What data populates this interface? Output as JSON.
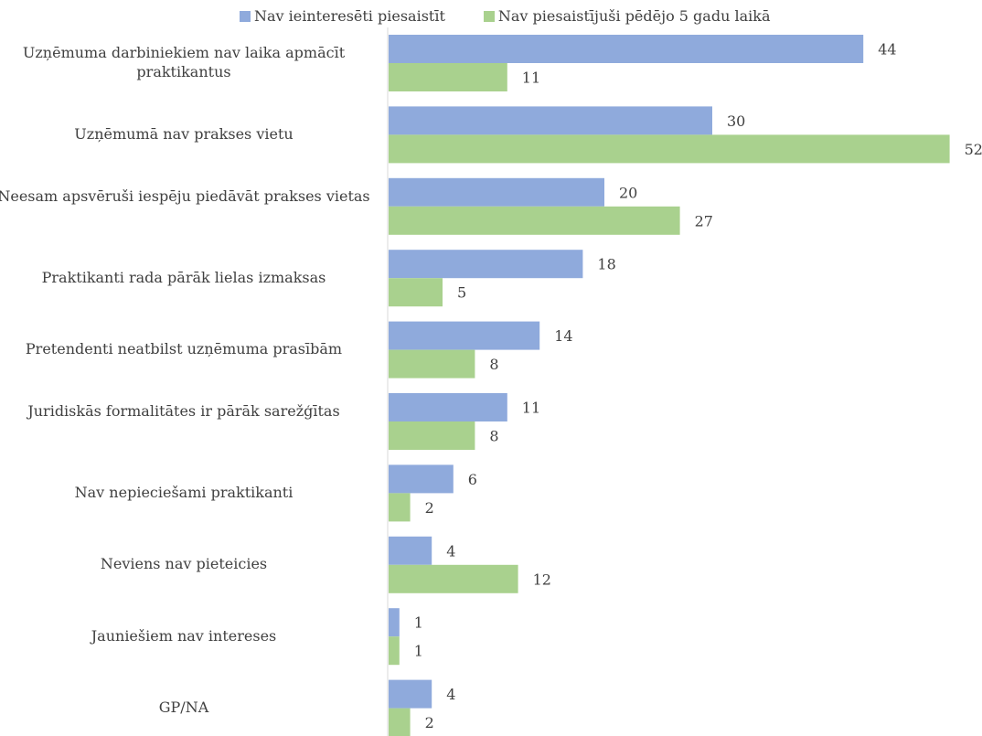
{
  "chart_data": {
    "type": "bar",
    "orientation": "horizontal",
    "categories": [
      "Uzņēmuma darbiniekiem nav laika apmācīt praktikantus",
      "Uzņēmumā nav prakses vietu",
      "Neesam apsvēruši iespēju piedāvāt prakses vietas",
      "Praktikanti rada pārāk lielas izmaksas",
      "Pretendenti neatbilst uzņēmuma prasībām",
      "Juridiskās formalitātes ir pārāk sarežģītas",
      "Nav nepieciešami praktikanti",
      "Neviens nav pieteicies",
      "Jauniešiem nav intereses",
      "GP/NA"
    ],
    "series": [
      {
        "name": "Nav ieinteresēti piesaistīt",
        "color": "#8faadc",
        "values": [
          44,
          30,
          20,
          18,
          14,
          11,
          6,
          4,
          1,
          4
        ]
      },
      {
        "name": "Nav piesaistījuši pēdējo 5 gadu laikā",
        "color": "#a9d18e",
        "values": [
          11,
          52,
          27,
          5,
          8,
          8,
          2,
          12,
          1,
          2
        ]
      }
    ],
    "xlim": [
      0,
      52
    ],
    "legend_position": "top",
    "grid": false,
    "data_labels": true
  }
}
